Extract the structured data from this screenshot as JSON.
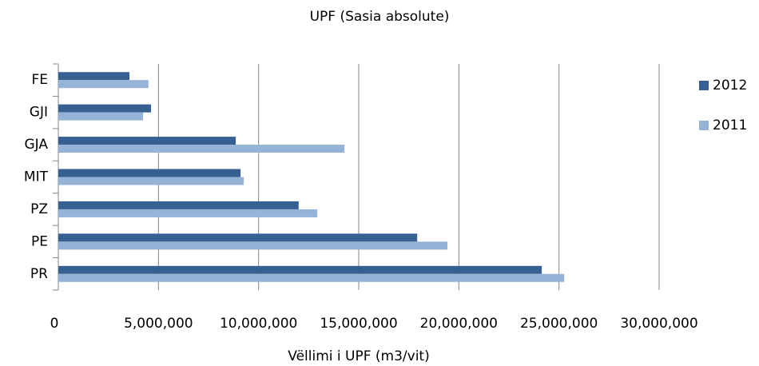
{
  "chart_data": {
    "type": "hbar",
    "title": "UPF (Sasia absolute)",
    "x_label": "Vëllimi i UPF (m3/vit)",
    "categories": [
      "FE",
      "GJI",
      "GJA",
      "MIT",
      "PZ",
      "PE",
      "PR"
    ],
    "series": [
      {
        "name": "2012",
        "color": "#376092",
        "values": [
          3550000,
          4630000,
          8860000,
          9100000,
          12000000,
          17920000,
          24140000
        ]
      },
      {
        "name": "2011",
        "color": "#95b3d7",
        "values": [
          4500000,
          4230000,
          14290000,
          9260000,
          12930000,
          19430000,
          25260000
        ]
      }
    ],
    "xlim": [
      0,
      30000000
    ],
    "xticks": [
      0,
      {
        "value": 5000000,
        "label": "5,000,000"
      },
      {
        "value": 10000000,
        "label": "10,000,000"
      },
      {
        "value": 15000000,
        "label": "15,000,000"
      },
      {
        "value": 20000000,
        "label": "20,000,000"
      },
      {
        "value": 25000000,
        "label": "25,000,000"
      },
      {
        "value": 30000000,
        "label": "30,000,000"
      }
    ],
    "grid": true,
    "legend": "right"
  }
}
